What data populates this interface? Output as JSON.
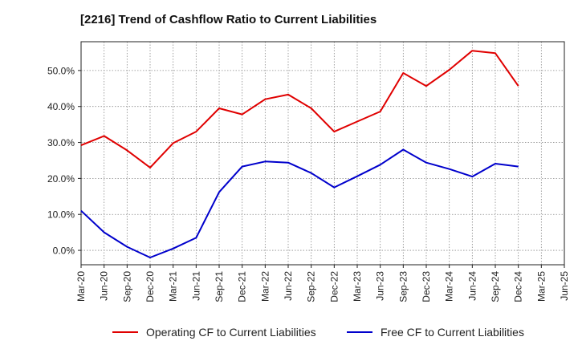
{
  "chart_data": {
    "type": "line",
    "title": "[2216]  Trend of Cashflow Ratio to Current Liabilities",
    "xlabel": "",
    "ylabel": "",
    "x": [
      "Mar-20",
      "Jun-20",
      "Sep-20",
      "Dec-20",
      "Mar-21",
      "Jun-21",
      "Sep-21",
      "Dec-21",
      "Mar-22",
      "Jun-22",
      "Sep-22",
      "Dec-22",
      "Mar-23",
      "Jun-23",
      "Sep-23",
      "Dec-23",
      "Mar-24",
      "Jun-24",
      "Sep-24",
      "Dec-24",
      "Mar-25",
      "Jun-25"
    ],
    "x_tick_labels": [
      "Mar-20",
      "Jun-20",
      "Sep-20",
      "Dec-20",
      "Mar-21",
      "Jun-21",
      "Sep-21",
      "Dec-21",
      "Mar-22",
      "Jun-22",
      "Sep-22",
      "Dec-22",
      "Mar-23",
      "Jun-23",
      "Sep-23",
      "Dec-23",
      "Mar-24",
      "Jun-24",
      "Sep-24",
      "Dec-24",
      "Mar-25",
      "Jun-25"
    ],
    "ylim": [
      -4,
      58
    ],
    "y_ticks": [
      0,
      10,
      20,
      30,
      40,
      50
    ],
    "y_tick_labels": [
      "0.0%",
      "10.0%",
      "20.0%",
      "30.0%",
      "40.0%",
      "50.0%"
    ],
    "grid": true,
    "legend_position": "bottom",
    "series": [
      {
        "name": "Operating CF to Current Liabilities",
        "color": "#e00000",
        "values": [
          29.2,
          31.8,
          27.8,
          23.0,
          29.8,
          33.0,
          39.5,
          37.8,
          42.0,
          43.3,
          39.5,
          33.0,
          35.8,
          38.6,
          49.3,
          45.7,
          50.2,
          55.5,
          54.8,
          45.7,
          null,
          null
        ]
      },
      {
        "name": "Free CF to Current Liabilities",
        "color": "#0000cc",
        "values": [
          11.0,
          5.0,
          1.0,
          -2.0,
          0.5,
          3.5,
          16.2,
          23.3,
          24.7,
          24.4,
          21.5,
          17.5,
          20.6,
          23.8,
          28.0,
          24.4,
          22.6,
          20.5,
          24.1,
          23.3,
          null,
          null
        ]
      }
    ]
  }
}
